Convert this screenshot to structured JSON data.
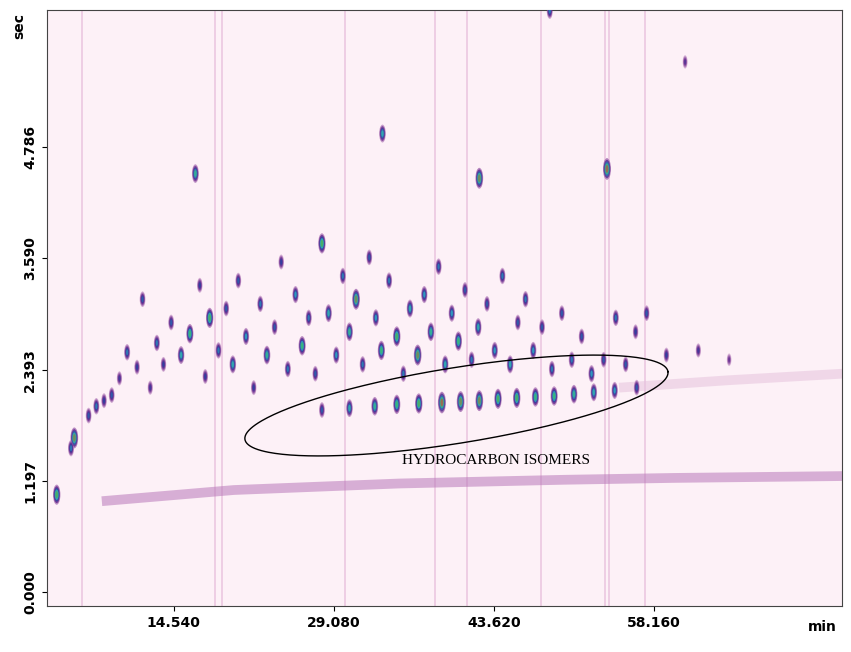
{
  "chart_data": {
    "type": "scatter",
    "annotation": "HYDROCARBON ISOMERS",
    "x_label": "min",
    "y_label": "sec",
    "xlim": [
      3.0,
      75.3
    ],
    "ylim": [
      -0.15,
      6.26
    ],
    "xticks": [
      {
        "value": 14.54,
        "label": "14.540"
      },
      {
        "value": 29.08,
        "label": "29.080"
      },
      {
        "value": 43.62,
        "label": "43.620"
      },
      {
        "value": 58.16,
        "label": "58.160"
      }
    ],
    "yticks": [
      {
        "value": 0.0,
        "label": "0.000"
      },
      {
        "value": 1.197,
        "label": "1.197"
      },
      {
        "value": 2.393,
        "label": "2.393"
      },
      {
        "value": 3.59,
        "label": "3.590"
      },
      {
        "value": 4.786,
        "label": "4.786"
      }
    ],
    "grid": false,
    "streaks": [
      6.2,
      18.3,
      18.9,
      30.1,
      38.3,
      41.2,
      47.9,
      53.7,
      54.1,
      57.4
    ],
    "series": [
      {
        "type": "scatter",
        "x": [
          3.9,
          5.5,
          5.2,
          6.8,
          7.5,
          8.2,
          8.9,
          9.6,
          10.3,
          11.2,
          11.7,
          12.4,
          13.0,
          13.6,
          14.3,
          15.2,
          16.0,
          16.5,
          16.9,
          17.4,
          17.8,
          18.6,
          19.3,
          19.9,
          20.4,
          21.1,
          21.8,
          22.4,
          23.0,
          23.7,
          24.3,
          24.9,
          25.6,
          26.2,
          26.8,
          27.4,
          28.0,
          28.6,
          29.3,
          29.9,
          30.5,
          31.1,
          31.7,
          32.3,
          32.9,
          33.5,
          33.4,
          34.1,
          34.8,
          35.4,
          36.0,
          36.7,
          37.3,
          37.9,
          38.6,
          39.2,
          39.8,
          40.4,
          41.0,
          41.6,
          42.3,
          42.2,
          43.0,
          43.7,
          44.4,
          45.1,
          45.8,
          46.5,
          47.2,
          48.0,
          48.7,
          48.9,
          49.8,
          50.7,
          51.6,
          52.5,
          53.9,
          53.6,
          54.7,
          55.6,
          56.5,
          57.5,
          59.3,
          61.0,
          62.2,
          65.0,
          28.0,
          30.5,
          32.8,
          34.8,
          36.8,
          38.9,
          40.6,
          42.3,
          44.0,
          45.7,
          47.4,
          49.1,
          50.9,
          52.7,
          54.6,
          56.6
        ],
        "values": [
          1.05,
          1.66,
          1.55,
          1.9,
          2.0,
          2.06,
          2.12,
          2.3,
          2.58,
          2.42,
          3.15,
          2.2,
          2.68,
          2.45,
          2.9,
          2.55,
          2.78,
          4.5,
          3.3,
          2.32,
          2.95,
          2.6,
          3.05,
          2.45,
          3.35,
          2.75,
          2.2,
          3.1,
          2.55,
          2.85,
          3.55,
          2.4,
          3.2,
          2.65,
          2.95,
          2.35,
          3.75,
          3.0,
          2.55,
          3.4,
          2.8,
          3.15,
          2.45,
          3.6,
          2.95,
          4.93,
          2.6,
          3.35,
          2.75,
          2.35,
          3.05,
          2.55,
          3.2,
          2.8,
          3.5,
          2.45,
          3.0,
          2.7,
          3.25,
          2.5,
          4.45,
          2.85,
          3.1,
          2.6,
          3.4,
          2.45,
          2.9,
          3.15,
          2.6,
          2.85,
          6.25,
          2.4,
          3.0,
          2.5,
          2.75,
          2.35,
          4.55,
          2.5,
          2.95,
          2.45,
          2.8,
          3.0,
          2.55,
          5.7,
          2.6,
          2.5,
          1.96,
          1.98,
          2.0,
          2.02,
          2.03,
          2.04,
          2.05,
          2.06,
          2.08,
          2.09,
          2.1,
          2.11,
          2.13,
          2.15,
          2.17,
          2.2
        ],
        "intensity": [
          85,
          90,
          60,
          55,
          60,
          50,
          55,
          45,
          60,
          50,
          55,
          45,
          60,
          50,
          55,
          70,
          80,
          75,
          50,
          50,
          85,
          60,
          55,
          70,
          55,
          65,
          50,
          60,
          75,
          55,
          50,
          60,
          65,
          80,
          60,
          55,
          85,
          70,
          65,
          60,
          75,
          90,
          60,
          55,
          65,
          70,
          80,
          60,
          85,
          60,
          70,
          90,
          65,
          75,
          60,
          70,
          65,
          80,
          55,
          60,
          90,
          70,
          55,
          65,
          60,
          70,
          55,
          60,
          65,
          55,
          60,
          60,
          55,
          60,
          55,
          65,
          95,
          55,
          60,
          55,
          50,
          55,
          50,
          40,
          45,
          35,
          55,
          70,
          75,
          80,
          85,
          95,
          90,
          90,
          85,
          85,
          80,
          80,
          75,
          70,
          65,
          55
        ]
      },
      {
        "type": "line",
        "x": [
          8.0,
          20.0,
          35.0,
          50.0,
          60.0,
          75.3
        ],
        "values": [
          0.98,
          1.1,
          1.17,
          1.21,
          1.23,
          1.25
        ],
        "color": "#b978b9"
      },
      {
        "type": "line",
        "x": [
          55.0,
          65.0,
          75.3
        ],
        "values": [
          2.2,
          2.28,
          2.35
        ],
        "color": "#e6c3dd"
      }
    ]
  }
}
